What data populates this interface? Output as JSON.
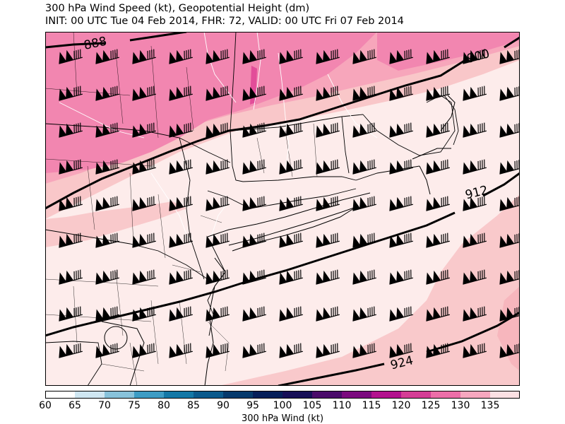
{
  "title": {
    "line1": "300 hPa Wind Speed (kt), Geopotential Height (dm)",
    "line2": "INIT: 00 UTC Tue 04 Feb 2014, FHR: 72, VALID: 00 UTC Fri 07 Feb 2014"
  },
  "colors": {
    "speed_100_110": "#f7d3d1",
    "speed_110_115": "#f6a8b6",
    "speed_115_120": "#f38cb0",
    "speed_120_125": "#ef6aa4",
    "speed_125_plus": "#d33d8b",
    "height_contour": "#000000"
  },
  "contours": {
    "label_888": "888",
    "label_900": "900",
    "label_912": "912",
    "label_924": "924"
  },
  "colorbar": {
    "ticks": [
      "60",
      "65",
      "70",
      "75",
      "80",
      "85",
      "90",
      "95",
      "100",
      "105",
      "110",
      "115",
      "120",
      "125",
      "130",
      "135"
    ],
    "colors": [
      "#ffffff",
      "#cfe6f1",
      "#88c2da",
      "#3d9cc4",
      "#1478a6",
      "#0b5a8c",
      "#063a6c",
      "#061f5a",
      "#170f57",
      "#4a0b6a",
      "#7b0a7e",
      "#b3128e",
      "#d43d95",
      "#ec6ea8",
      "#f7a7bf",
      "#fbe0e3"
    ],
    "label": "300 hPa Wind (kt)"
  },
  "wind_barbs": {
    "symbol": "wind-barb",
    "description": "barbs plotted on regular grid"
  }
}
